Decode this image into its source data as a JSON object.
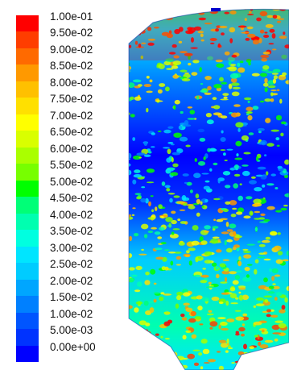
{
  "legend": {
    "labels": [
      "1.00e-01",
      "9.50e-02",
      "9.00e-02",
      "8.50e-02",
      "8.00e-02",
      "7.50e-02",
      "7.00e-02",
      "6.50e-02",
      "6.00e-02",
      "5.50e-02",
      "5.00e-02",
      "4.50e-02",
      "4.00e-02",
      "3.50e-02",
      "3.00e-02",
      "2.50e-02",
      "2.00e-02",
      "1.50e-02",
      "1.00e-02",
      "5.00e-03",
      "0.00e+00"
    ],
    "colors": [
      "#ff0000",
      "#ff3d00",
      "#ff6a00",
      "#ff9900",
      "#ffc000",
      "#ffe000",
      "#ffff00",
      "#d9ff00",
      "#aaff00",
      "#77ff00",
      "#00ff00",
      "#00ff77",
      "#00ffb0",
      "#00ffe0",
      "#00e5ff",
      "#00ccff",
      "#00a6ff",
      "#0080ff",
      "#0055ff",
      "#0033ff",
      "#0000ff"
    ]
  },
  "image": {
    "subject": "vessel-contour-plot",
    "colors": {
      "low": "#0000ff",
      "mid": "#00ff00",
      "high": "#ff0000",
      "background": "#ffffff"
    }
  }
}
